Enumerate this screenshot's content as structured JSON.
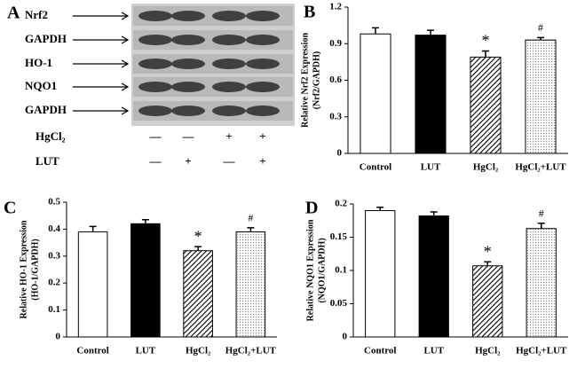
{
  "blot": {
    "panel_label": "A",
    "rows": [
      "Nrf2",
      "GAPDH",
      "HO-1",
      "NQO1",
      "GAPDH"
    ],
    "treatments": [
      {
        "name": "HgCl₂",
        "signs": [
          "—",
          "—",
          "+",
          "+"
        ]
      },
      {
        "name": "LUT",
        "signs": [
          "—",
          "+",
          "—",
          "+"
        ]
      }
    ]
  },
  "chart_data": [
    {
      "type": "bar",
      "panel_label": "B",
      "ylabel": [
        "Relative Nrf2 Expression",
        "(Nrf2/GAPDH)"
      ],
      "categories": [
        "Control",
        "LUT",
        "HgCl₂",
        "HgCl₂+LUT"
      ],
      "values": [
        0.98,
        0.97,
        0.79,
        0.93
      ],
      "errors": [
        0.05,
        0.04,
        0.05,
        0.02
      ],
      "markers": [
        null,
        null,
        "*",
        "#"
      ],
      "bar_styles": [
        "white",
        "black",
        "hatch",
        "dots"
      ],
      "ylim": [
        0,
        1.2
      ],
      "yticks": [
        0,
        0.3,
        0.6,
        0.9,
        1.2
      ]
    },
    {
      "type": "bar",
      "panel_label": "C",
      "ylabel": [
        "Relative HO-1 Expression",
        "(HO-1/GAPDH)"
      ],
      "categories": [
        "Control",
        "LUT",
        "HgCl₂",
        "HgCl₂+LUT"
      ],
      "values": [
        0.39,
        0.42,
        0.32,
        0.39
      ],
      "errors": [
        0.02,
        0.015,
        0.015,
        0.015
      ],
      "markers": [
        null,
        null,
        "*",
        "#"
      ],
      "bar_styles": [
        "white",
        "black",
        "hatch",
        "dots"
      ],
      "ylim": [
        0,
        0.5
      ],
      "yticks": [
        0,
        0.1,
        0.2,
        0.3,
        0.4,
        0.5
      ]
    },
    {
      "type": "bar",
      "panel_label": "D",
      "ylabel": [
        "Relative NQO1 Expression",
        "(NQO1/GAPDH)"
      ],
      "categories": [
        "Control",
        "LUT",
        "HgCl₂",
        "HgCl₂+LUT"
      ],
      "values": [
        0.19,
        0.182,
        0.107,
        0.163
      ],
      "errors": [
        0.005,
        0.006,
        0.006,
        0.008
      ],
      "markers": [
        null,
        null,
        "*",
        "#"
      ],
      "bar_styles": [
        "white",
        "black",
        "hatch",
        "dots"
      ],
      "ylim": [
        0,
        0.2
      ],
      "yticks": [
        0,
        0.05,
        0.1,
        0.15,
        0.2
      ]
    }
  ]
}
